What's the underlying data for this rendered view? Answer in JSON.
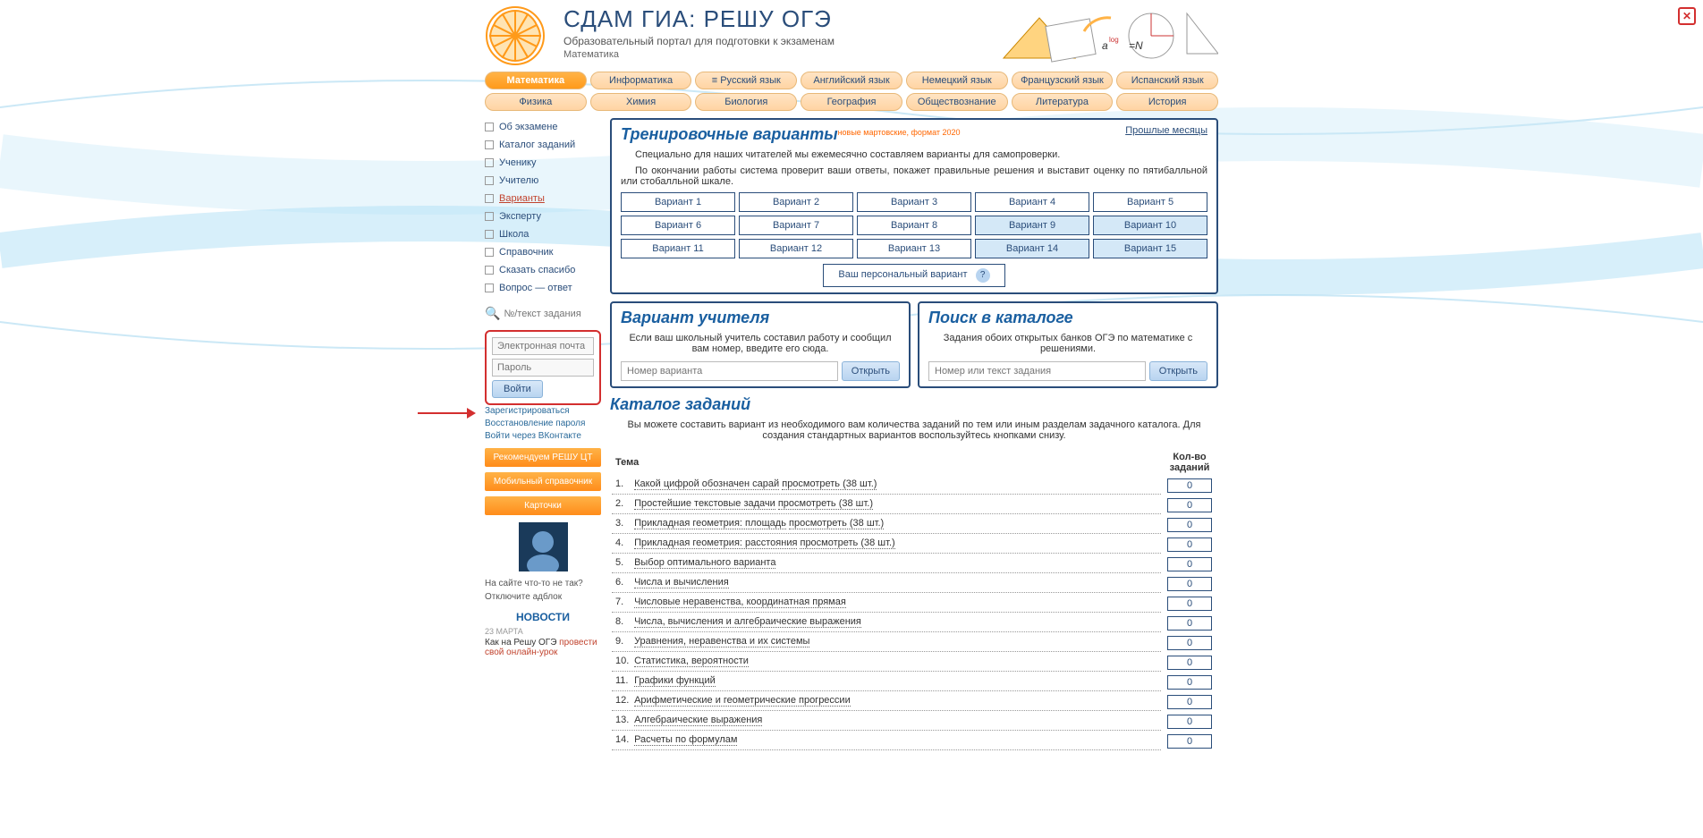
{
  "header": {
    "title": "СДАМ ГИА: РЕШУ ОГЭ",
    "subtitle": "Образовательный портал для подготовки к экзаменам",
    "subject": "Математика"
  },
  "nav_row1": [
    {
      "label": "Математика",
      "active": true
    },
    {
      "label": "Информатика"
    },
    {
      "label": "≡ Русский язык"
    },
    {
      "label": "Английский язык"
    },
    {
      "label": "Немецкий язык"
    },
    {
      "label": "Французский язык"
    },
    {
      "label": "Испанский язык"
    }
  ],
  "nav_row2": [
    {
      "label": "Физика"
    },
    {
      "label": "Химия"
    },
    {
      "label": "Биология"
    },
    {
      "label": "География"
    },
    {
      "label": "Обществознание"
    },
    {
      "label": "Литература"
    },
    {
      "label": "История"
    }
  ],
  "sidebar": {
    "items": [
      {
        "label": "Об экзамене"
      },
      {
        "label": "Каталог заданий"
      },
      {
        "label": "Ученику"
      },
      {
        "label": "Учителю"
      },
      {
        "label": "Варианты",
        "active": true
      },
      {
        "label": "Эксперту"
      },
      {
        "label": "Школа"
      },
      {
        "label": "Справочник"
      },
      {
        "label": "Сказать спасибо"
      },
      {
        "label": "Вопрос — ответ"
      }
    ],
    "search_placeholder": "№/текст задания",
    "login": {
      "email_placeholder": "Электронная почта",
      "password_placeholder": "Пароль",
      "button": "Войти"
    },
    "links": [
      "Зарегистрироваться",
      "Восстановление пароля",
      "Войти через ВКонтакте"
    ],
    "orange_buttons": [
      "Рекомендуем РЕШУ ЦТ",
      "Мобильный справочник",
      "Карточки"
    ],
    "note1": "На сайте что-то не так?",
    "note2": "Отключите адблок",
    "news_header": "НОВОСТИ",
    "news_date": "23 МАРТА",
    "news_text1": "Как на Решу ОГЭ ",
    "news_text2": "провести свой онлайн-урок"
  },
  "training": {
    "title": "Тренировочные варианты",
    "badge": "новые мартовские, формат 2020",
    "past_link": "Прошлые месяцы",
    "desc1": "Специально для наших читателей мы ежемесячно составляем варианты для самопроверки.",
    "desc2": "По окончании работы система проверит ваши ответы, покажет правильные решения и выставит оценку по пятибалльной или стобалльной шкале.",
    "variants": [
      {
        "label": "Вариант 1"
      },
      {
        "label": "Вариант 2"
      },
      {
        "label": "Вариант 3"
      },
      {
        "label": "Вариант 4"
      },
      {
        "label": "Вариант 5"
      },
      {
        "label": "Вариант 6"
      },
      {
        "label": "Вариант 7"
      },
      {
        "label": "Вариант 8"
      },
      {
        "label": "Вариант 9",
        "hl": true
      },
      {
        "label": "Вариант 10",
        "hl": true
      },
      {
        "label": "Вариант 11"
      },
      {
        "label": "Вариант 12"
      },
      {
        "label": "Вариант 13"
      },
      {
        "label": "Вариант 14",
        "hl": true
      },
      {
        "label": "Вариант 15",
        "hl": true
      }
    ],
    "personal": "Ваш персональный вариант",
    "help": "?"
  },
  "teacher": {
    "title": "Вариант учителя",
    "desc": "Если ваш школьный учитель составил работу и сообщил вам номер, введите его сюда.",
    "placeholder": "Номер варианта",
    "button": "Открыть"
  },
  "search": {
    "title": "Поиск в каталоге",
    "desc": "Задания обоих открытых банков ОГЭ по математике с решениями.",
    "placeholder": "Номер или текст задания",
    "button": "Открыть"
  },
  "catalog": {
    "title": "Каталог заданий",
    "desc": "Вы можете составить вариант из необходимого вам количества заданий по тем или иным разделам задачного каталога. Для создания стандартных вариантов воспользуйтесь кнопками снизу.",
    "theme_header": "Тема",
    "count_header": "Кол-во заданий",
    "view_text": "просмотреть (38 шт.)",
    "topics": [
      {
        "n": "1.",
        "label": "Какой цифрой обозначен сарай",
        "view": true
      },
      {
        "n": "2.",
        "label": "Простейшие текстовые задачи",
        "view": true
      },
      {
        "n": "3.",
        "label": "Прикладная геометрия: площадь",
        "view": true
      },
      {
        "n": "4.",
        "label": "Прикладная геометрия: расстояния",
        "view": true
      },
      {
        "n": "5.",
        "label": "Выбор оптимального варианта"
      },
      {
        "n": "6.",
        "label": "Числа и вычисления"
      },
      {
        "n": "7.",
        "label": "Числовые неравенства, координатная прямая"
      },
      {
        "n": "8.",
        "label": "Числа, вычисления и алгебраические выражения"
      },
      {
        "n": "9.",
        "label": "Уравнения, неравенства и их системы"
      },
      {
        "n": "10.",
        "label": "Статистика, вероятности"
      },
      {
        "n": "11.",
        "label": "Графики функций"
      },
      {
        "n": "12.",
        "label": "Арифметические и геометрические прогрессии"
      },
      {
        "n": "13.",
        "label": "Алгебраические выражения"
      },
      {
        "n": "14.",
        "label": "Расчеты по формулам"
      }
    ],
    "count_value": "0"
  },
  "colors": {
    "primary": "#2a4d7a",
    "heading": "#1a5fa0",
    "accent": "#ff8c1a",
    "alert": "#c1432e",
    "highlight_bg": "#d4e8f7"
  }
}
